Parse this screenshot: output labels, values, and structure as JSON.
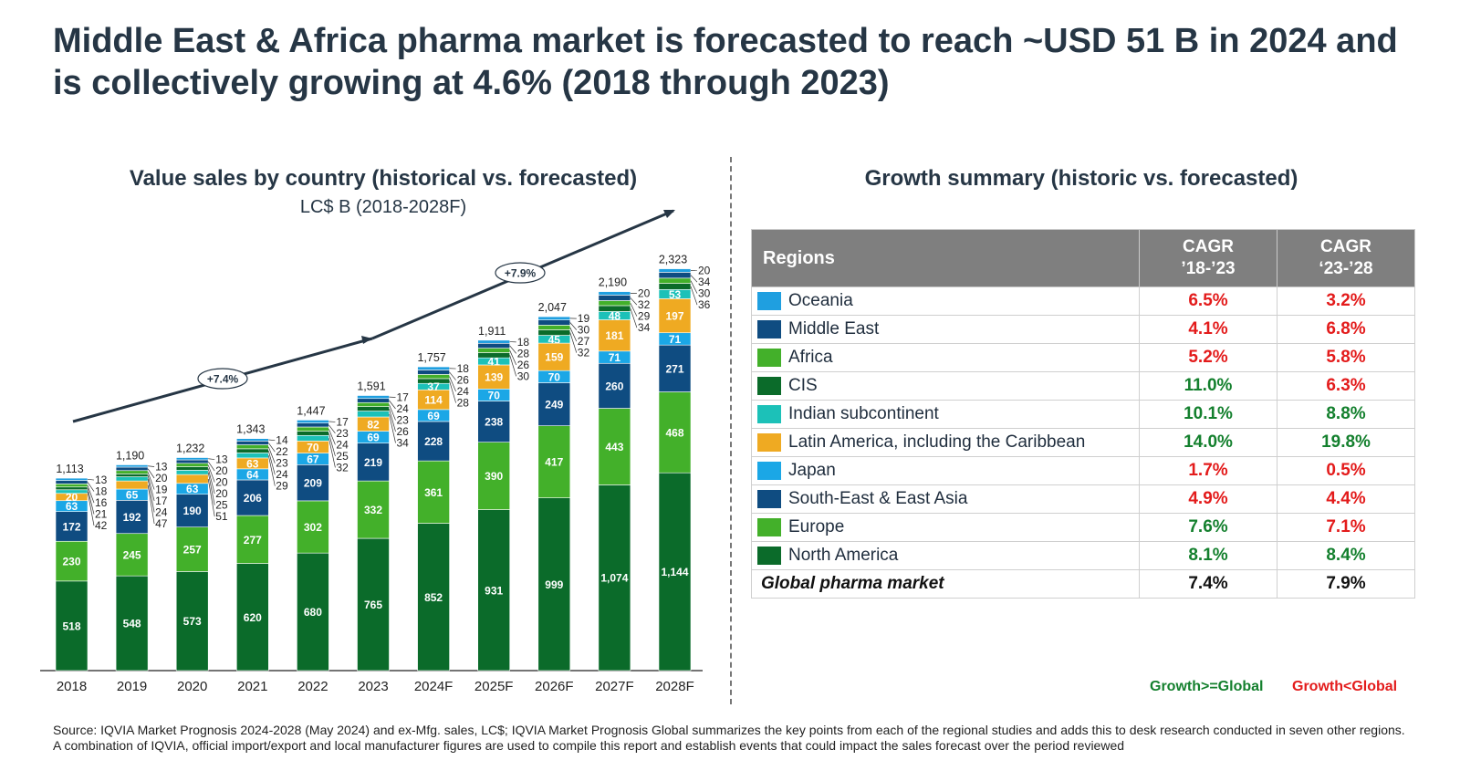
{
  "header": {
    "title": "Middle East & Africa pharma market is forecasted to reach ~USD 51 B in 2024 and is collectively growing at 4.6% (2018 through 2023)"
  },
  "left_panel": {
    "title": "Value sales by country (historical vs. forecasted)",
    "subtitle": "LC$ B (2018-2028F)"
  },
  "right_panel": {
    "title": "Growth summary (historic vs. forecasted)",
    "table": {
      "header_region": "Regions",
      "header_cagr1": "CAGR\n’18-’23",
      "header_cagr2": "CAGR\n‘23-’28",
      "rows": [
        {
          "name": "Oceania",
          "color": "#1f9fe0",
          "c1": "6.5%",
          "c1_color": "#e31b1b",
          "c2": "3.2%",
          "c2_color": "#e31b1b"
        },
        {
          "name": "Middle East",
          "color": "#0f4c81",
          "c1": "4.1%",
          "c1_color": "#e31b1b",
          "c2": "6.8%",
          "c2_color": "#e31b1b"
        },
        {
          "name": "Africa",
          "color": "#43b02a",
          "c1": "5.2%",
          "c1_color": "#e31b1b",
          "c2": "5.8%",
          "c2_color": "#e31b1b"
        },
        {
          "name": "CIS",
          "color": "#0b6b2a",
          "c1": "11.0%",
          "c1_color": "#14802e",
          "c2": "6.3%",
          "c2_color": "#e31b1b"
        },
        {
          "name": "Indian subcontinent",
          "color": "#1cc1b8",
          "c1": "10.1%",
          "c1_color": "#14802e",
          "c2": "8.8%",
          "c2_color": "#14802e"
        },
        {
          "name": "Latin America, including the Caribbean",
          "color": "#efaa22",
          "c1": "14.0%",
          "c1_color": "#14802e",
          "c2": "19.8%",
          "c2_color": "#14802e"
        },
        {
          "name": "Japan",
          "color": "#1ba7e6",
          "c1": "1.7%",
          "c1_color": "#e31b1b",
          "c2": "0.5%",
          "c2_color": "#e31b1b"
        },
        {
          "name": "South-East & East Asia",
          "color": "#0f4c81",
          "c1": "4.9%",
          "c1_color": "#e31b1b",
          "c2": "4.4%",
          "c2_color": "#e31b1b"
        },
        {
          "name": "Europe",
          "color": "#43b02a",
          "c1": "7.6%",
          "c1_color": "#14802e",
          "c2": "7.1%",
          "c2_color": "#e31b1b"
        },
        {
          "name": "North America",
          "color": "#0b6b2a",
          "c1": "8.1%",
          "c1_color": "#14802e",
          "c2": "8.4%",
          "c2_color": "#14802e"
        }
      ],
      "global": {
        "name": "Global pharma market",
        "c1": "7.4%",
        "c2": "7.9%"
      }
    },
    "legend_green": "Growth>=Global",
    "legend_red": "Growth<Global",
    "green_color": "#14802e",
    "red_color": "#e31b1b"
  },
  "source": "Source: IQVIA Market Prognosis 2024-2028 (May 2024) and ex-Mfg. sales, LC$; IQVIA Market Prognosis Global summarizes the key points from each of the regional studies and adds this to desk research conducted in seven other regions. A combination of IQVIA, official import/export and local manufacturer figures are used to compile this report and establish events that could impact the sales forecast over the period reviewed",
  "chart_data": {
    "type": "bar",
    "stacked": true,
    "title": "Value sales by country (historical vs. forecasted)",
    "subtitle": "LC$ B (2018-2028F)",
    "categories": [
      "2018",
      "2019",
      "2020",
      "2021",
      "2022",
      "2023",
      "2024F",
      "2025F",
      "2026F",
      "2027F",
      "2028F"
    ],
    "totals": [
      "1,113",
      "1,190",
      "1,232",
      "1,343",
      "1,447",
      "1,591",
      "1,757",
      "1,911",
      "2,047",
      "2,190",
      "2,323"
    ],
    "series": [
      {
        "name": "North America",
        "color": "#0b6b2a",
        "values": [
          518,
          548,
          573,
          620,
          680,
          765,
          852,
          931,
          999,
          1074,
          1144
        ],
        "labels": [
          "518",
          "548",
          "573",
          "620",
          "680",
          "765",
          "852",
          "931",
          "999",
          "1,074",
          "1,144"
        ]
      },
      {
        "name": "Europe",
        "color": "#43b02a",
        "values": [
          230,
          245,
          257,
          277,
          302,
          332,
          361,
          390,
          417,
          443,
          468
        ],
        "labels": [
          "230",
          "245",
          "257",
          "277",
          "302",
          "332",
          "361",
          "390",
          "417",
          "443",
          "468"
        ]
      },
      {
        "name": "South-East & East Asia",
        "color": "#0f4c81",
        "values": [
          172,
          192,
          190,
          206,
          209,
          219,
          228,
          238,
          249,
          260,
          271
        ],
        "labels": [
          "172",
          "192",
          "190",
          "206",
          "209",
          "219",
          "228",
          "238",
          "249",
          "260",
          "271"
        ]
      },
      {
        "name": "Japan",
        "color": "#1ba7e6",
        "values": [
          63,
          65,
          63,
          64,
          67,
          69,
          69,
          70,
          70,
          71,
          71
        ],
        "labels": [
          "63",
          "65",
          "63",
          "64",
          "67",
          "69",
          "69",
          "70",
          "70",
          "71",
          "71"
        ]
      },
      {
        "name": "Latin America, including the Caribbean",
        "color": "#efaa22",
        "values": [
          42,
          47,
          51,
          63,
          70,
          82,
          114,
          139,
          159,
          181,
          197
        ],
        "labels": [
          "42",
          "47",
          "51",
          "63",
          "70",
          "82",
          "114",
          "139",
          "159",
          "181",
          "197"
        ]
      },
      {
        "name": "Indian subcontinent",
        "color": "#1cc1b8",
        "values": [
          21,
          24,
          25,
          29,
          32,
          34,
          37,
          41,
          45,
          48,
          53
        ],
        "labels": [
          "21",
          "24",
          "25",
          "29",
          "32",
          "34",
          "37",
          "41",
          "45",
          "48",
          "53"
        ]
      },
      {
        "name": "CIS",
        "color": "#0b6b2a",
        "values": [
          16,
          17,
          20,
          24,
          25,
          26,
          28,
          30,
          32,
          34,
          36
        ],
        "labels": [
          "16",
          "17",
          "20",
          "24",
          "25",
          "26",
          "28",
          "30",
          "32",
          "34",
          "36"
        ]
      },
      {
        "name": "Africa",
        "color": "#43b02a",
        "values": [
          18,
          19,
          20,
          23,
          24,
          23,
          24,
          26,
          27,
          29,
          30
        ],
        "labels": [
          "18",
          "19",
          "20",
          "23",
          "24",
          "23",
          "24",
          "26",
          "27",
          "29",
          "30"
        ]
      },
      {
        "name": "Middle East",
        "color": "#0f4c81",
        "values": [
          20,
          20,
          20,
          22,
          23,
          24,
          26,
          28,
          30,
          32,
          34
        ],
        "labels": [
          "20",
          "20",
          "20",
          "22",
          "23",
          "24",
          "26",
          "28",
          "30",
          "32",
          "34"
        ]
      },
      {
        "name": "Oceania",
        "color": "#1f9fe0",
        "values": [
          13,
          13,
          13,
          14,
          17,
          17,
          18,
          18,
          19,
          20,
          20
        ],
        "labels": [
          "13",
          "13",
          "13",
          "14",
          "17",
          "17",
          "18",
          "18",
          "19",
          "20",
          "20"
        ]
      }
    ],
    "inside_labels": [
      [
        "518",
        "230",
        "172",
        "63",
        "20"
      ],
      [
        "548",
        "245",
        "192",
        "65"
      ],
      [
        "573",
        "257",
        "190",
        "63"
      ],
      [
        "620",
        "277",
        "206",
        "64",
        "63"
      ],
      [
        "680",
        "302",
        "209",
        "67",
        "70"
      ],
      [
        "765",
        "332",
        "219",
        "69",
        "82"
      ],
      [
        "852",
        "361",
        "228",
        "69",
        "114",
        "37"
      ],
      [
        "931",
        "390",
        "238",
        "70",
        "139",
        "41"
      ],
      [
        "999",
        "417",
        "249",
        "70",
        "159",
        "45"
      ],
      [
        "1,074",
        "443",
        "260",
        "71",
        "181",
        "48"
      ],
      [
        "1,144",
        "468",
        "271",
        "71",
        "197",
        "53"
      ]
    ],
    "side_labels": [
      [
        "13",
        "18",
        "16",
        "21",
        "42"
      ],
      [
        "13",
        "20",
        "19",
        "17",
        "24",
        "47"
      ],
      [
        "13",
        "20",
        "20",
        "20",
        "25",
        "51"
      ],
      [
        "14",
        "22",
        "23",
        "24",
        "29"
      ],
      [
        "17",
        "23",
        "24",
        "25",
        "32"
      ],
      [
        "17",
        "24",
        "23",
        "26",
        "34"
      ],
      [
        "18",
        "26",
        "24",
        "28"
      ],
      [
        "18",
        "28",
        "26",
        "30"
      ],
      [
        "19",
        "30",
        "27",
        "32"
      ],
      [
        "20",
        "32",
        "29",
        "34"
      ],
      [
        "20",
        "34",
        "30",
        "36"
      ]
    ],
    "growth_labels": [
      {
        "text": "+7.4%",
        "from": "2018",
        "to": "2023"
      },
      {
        "text": "+7.9%",
        "from": "2023",
        "to": "2028F"
      }
    ],
    "ylim": [
      0,
      2400
    ],
    "xlabel": "",
    "ylabel": "LC$ B"
  }
}
